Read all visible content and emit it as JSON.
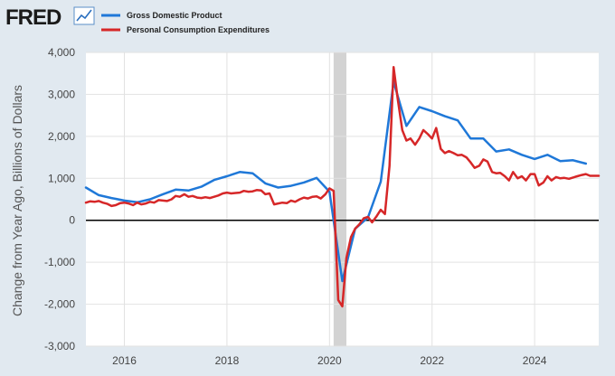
{
  "header": {
    "logo_text": "FRED",
    "logo_icon": "line-chart-icon"
  },
  "colors": {
    "gdp": "#1f78d8",
    "pce": "#d62728",
    "plot_background": "#ffffff",
    "page_background": "#e1e9f0",
    "recession_shading": "#d3d3d3"
  },
  "chart_data": {
    "type": "line",
    "title": "",
    "xlabel": "",
    "ylabel": "Change from Year Ago, Billions of Dollars",
    "xlim": [
      2015.25,
      2025.25
    ],
    "ylim": [
      -3000,
      4000
    ],
    "x_ticks": [
      {
        "value": 2016,
        "label": "2016"
      },
      {
        "value": 2018,
        "label": "2018"
      },
      {
        "value": 2020,
        "label": "2020"
      },
      {
        "value": 2022,
        "label": "2022"
      },
      {
        "value": 2024,
        "label": "2024"
      }
    ],
    "y_ticks": [
      {
        "value": 4000,
        "label": "4,000"
      },
      {
        "value": 3000,
        "label": "3,000"
      },
      {
        "value": 2000,
        "label": "2,000"
      },
      {
        "value": 1000,
        "label": "1,000"
      },
      {
        "value": 0,
        "label": "0"
      },
      {
        "value": -1000,
        "label": "-1,000"
      },
      {
        "value": -2000,
        "label": "-2,000"
      },
      {
        "value": -3000,
        "label": "-3,000"
      }
    ],
    "grid": true,
    "legend_position": "top-left",
    "recession": {
      "start": 2020.08,
      "end": 2020.33
    },
    "series": [
      {
        "name": "Gross Domestic Product",
        "color": "#1f78d8",
        "x": [
          2015.25,
          2015.5,
          2015.75,
          2016.0,
          2016.25,
          2016.5,
          2016.75,
          2017.0,
          2017.25,
          2017.5,
          2017.75,
          2018.0,
          2018.25,
          2018.5,
          2018.75,
          2019.0,
          2019.25,
          2019.5,
          2019.75,
          2020.0,
          2020.25,
          2020.5,
          2020.75,
          2021.0,
          2021.25,
          2021.5,
          2021.75,
          2022.0,
          2022.25,
          2022.5,
          2022.75,
          2023.0,
          2023.25,
          2023.5,
          2023.75,
          2024.0,
          2024.25,
          2024.5,
          2024.75,
          2025.0
        ],
        "values": [
          780,
          600,
          530,
          470,
          430,
          500,
          620,
          730,
          710,
          800,
          960,
          1050,
          1150,
          1120,
          880,
          780,
          820,
          900,
          1010,
          680,
          -1450,
          -200,
          70,
          920,
          3300,
          2250,
          2700,
          2600,
          2480,
          2380,
          1950,
          1950,
          1640,
          1690,
          1560,
          1460,
          1560,
          1410,
          1430,
          1350
        ]
      },
      {
        "name": "Personal Consumption Expenditures",
        "color": "#d62728",
        "x": [
          2015.25,
          2015.33,
          2015.42,
          2015.5,
          2015.58,
          2015.67,
          2015.75,
          2015.83,
          2015.92,
          2016.0,
          2016.08,
          2016.17,
          2016.25,
          2016.33,
          2016.42,
          2016.5,
          2016.58,
          2016.67,
          2016.75,
          2016.83,
          2016.92,
          2017.0,
          2017.08,
          2017.17,
          2017.25,
          2017.33,
          2017.42,
          2017.5,
          2017.58,
          2017.67,
          2017.75,
          2017.83,
          2017.92,
          2018.0,
          2018.08,
          2018.17,
          2018.25,
          2018.33,
          2018.42,
          2018.5,
          2018.58,
          2018.67,
          2018.75,
          2018.83,
          2018.92,
          2019.0,
          2019.08,
          2019.17,
          2019.25,
          2019.33,
          2019.42,
          2019.5,
          2019.58,
          2019.67,
          2019.75,
          2019.83,
          2019.92,
          2020.0,
          2020.08,
          2020.17,
          2020.25,
          2020.33,
          2020.42,
          2020.5,
          2020.58,
          2020.67,
          2020.75,
          2020.83,
          2020.92,
          2021.0,
          2021.08,
          2021.17,
          2021.25,
          2021.33,
          2021.42,
          2021.5,
          2021.58,
          2021.67,
          2021.75,
          2021.83,
          2021.92,
          2022.0,
          2022.08,
          2022.17,
          2022.25,
          2022.33,
          2022.42,
          2022.5,
          2022.58,
          2022.67,
          2022.75,
          2022.83,
          2022.92,
          2023.0,
          2023.08,
          2023.17,
          2023.25,
          2023.33,
          2023.42,
          2023.5,
          2023.58,
          2023.67,
          2023.75,
          2023.83,
          2023.92,
          2024.0,
          2024.08,
          2024.17,
          2024.25,
          2024.33,
          2024.42,
          2024.5,
          2024.58,
          2024.67,
          2024.75,
          2024.83,
          2024.92,
          2025.0,
          2025.08,
          2025.17,
          2025.25
        ],
        "values": [
          420,
          450,
          440,
          460,
          420,
          390,
          340,
          360,
          410,
          420,
          400,
          360,
          420,
          380,
          400,
          440,
          420,
          480,
          470,
          460,
          500,
          580,
          560,
          620,
          560,
          580,
          540,
          530,
          550,
          530,
          560,
          590,
          640,
          660,
          640,
          650,
          660,
          700,
          680,
          690,
          720,
          710,
          620,
          640,
          380,
          400,
          420,
          410,
          470,
          440,
          500,
          540,
          520,
          560,
          570,
          520,
          620,
          760,
          700,
          -1900,
          -2050,
          -900,
          -400,
          -200,
          -100,
          50,
          80,
          -50,
          100,
          250,
          150,
          1300,
          3650,
          2900,
          2150,
          1900,
          1950,
          1800,
          1950,
          2150,
          2050,
          1950,
          2200,
          1700,
          1600,
          1650,
          1600,
          1550,
          1560,
          1500,
          1380,
          1250,
          1300,
          1450,
          1400,
          1150,
          1120,
          1130,
          1050,
          950,
          1150,
          1000,
          1050,
          950,
          1100,
          1100,
          830,
          900,
          1050,
          950,
          1030,
          1000,
          1010,
          990,
          1020,
          1050,
          1080,
          1100,
          1060,
          1060,
          1060
        ]
      }
    ]
  }
}
